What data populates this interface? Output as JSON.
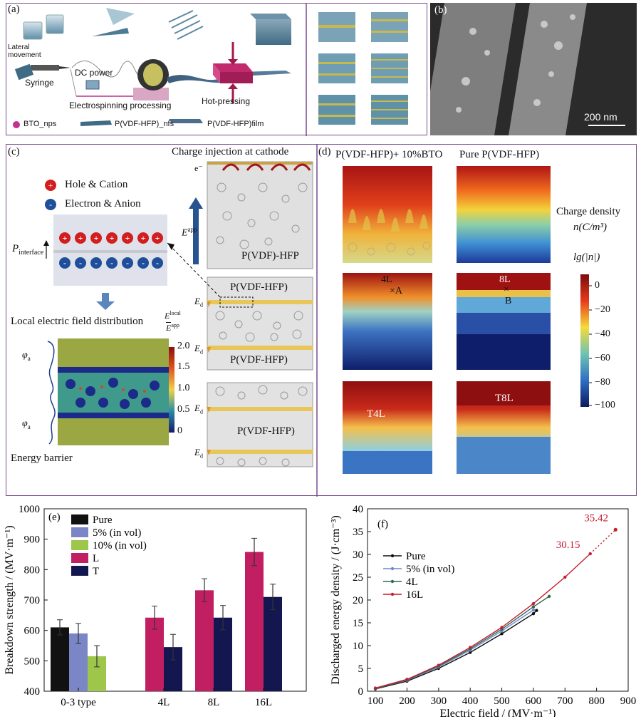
{
  "panel_a": {
    "label": "(a)",
    "lateral": "Lateral\nmovement",
    "syringe": "Syringe",
    "dc_power": "DC power",
    "electrospinning": "Electrospinning processing",
    "hot_pressing": "Hot-pressing",
    "legend": [
      "BTO_nps",
      "P(VDF-HFP)_nfs",
      "P(VDF-HFP)film"
    ]
  },
  "panel_b": {
    "label": "(b)",
    "scale": "200 nm"
  },
  "panel_c": {
    "label": "(c)",
    "charge_injection": "Charge injection at cathode",
    "hole": "Hole & Cation",
    "electron": "Electron & Anion",
    "p_interface": "P",
    "p_interface_sub": "interface",
    "local_field": "Local electric field distribution",
    "ratio_num": "E",
    "ratio_num_sup": "local",
    "ratio_den": "E",
    "ratio_den_sup": "app",
    "colorbar_ticks": [
      "2.0",
      "1.5",
      "1.0",
      "0.5",
      "0"
    ],
    "phi": "φ",
    "phi_sub": "a",
    "energy_barrier": "Energy barrier",
    "e_minus": "e⁻",
    "e_app": "E",
    "e_app_sup": "app",
    "ed": "E",
    "ed_sub": "d",
    "layer_label": "P(VDF)-HFP",
    "layer_label2": "P(VDF-HFP)"
  },
  "panel_d": {
    "label": "(d)",
    "title_left": "P(VDF-HFP)+ 10%BTO",
    "title_right": "Pure P(VDF-HFP)",
    "charge_density": "Charge density",
    "units": "n(C/m³)",
    "lg": "lg(|n|)",
    "colorbar_ticks": [
      "0",
      "−20",
      "−40",
      "−60",
      "−80",
      "−100"
    ],
    "tag_4L": "4L",
    "tag_A": "×A",
    "tag_8L": "8L",
    "tag_B": "B",
    "tag_T4L": "T4L",
    "tag_T8L": "T8L"
  },
  "chart_data": [
    {
      "type": "bar",
      "panel": "(e)",
      "ylabel": "Breakdown strength / (MV·m⁻¹)",
      "ylim": [
        400,
        1000
      ],
      "yticks": [
        400,
        500,
        600,
        700,
        800,
        900,
        1000
      ],
      "groups": [
        "0-3 type",
        "4L",
        "8L",
        "16L"
      ],
      "legend": [
        {
          "name": "Pure",
          "color": "#111111"
        },
        {
          "name": "5% (in vol)",
          "color": "#7b86c6"
        },
        {
          "name": "10% (in vol)",
          "color": "#9dc64a"
        },
        {
          "name": "L",
          "color": "#c21f63"
        },
        {
          "name": "T",
          "color": "#14174f"
        }
      ],
      "bars": [
        {
          "group": 0,
          "series": "Pure",
          "value": 610,
          "err": 25
        },
        {
          "group": 0,
          "series": "5% (in vol)",
          "value": 590,
          "err": 33
        },
        {
          "group": 0,
          "series": "10% (in vol)",
          "value": 515,
          "err": 35
        },
        {
          "group": 1,
          "series": "L",
          "value": 642,
          "err": 38
        },
        {
          "group": 1,
          "series": "T",
          "value": 545,
          "err": 42
        },
        {
          "group": 2,
          "series": "L",
          "value": 732,
          "err": 38
        },
        {
          "group": 2,
          "series": "T",
          "value": 642,
          "err": 40
        },
        {
          "group": 3,
          "series": "L",
          "value": 858,
          "err": 45
        },
        {
          "group": 3,
          "series": "T",
          "value": 710,
          "err": 42
        }
      ]
    },
    {
      "type": "line",
      "panel": "(f)",
      "xlabel": "Electric field / (MV·m⁻¹)",
      "ylabel": "Discharged energy density / (J·cm⁻³)",
      "xlim": [
        75,
        900
      ],
      "ylim": [
        0,
        40
      ],
      "xticks": [
        100,
        200,
        300,
        400,
        500,
        600,
        700,
        800,
        900
      ],
      "yticks": [
        0,
        5,
        10,
        15,
        20,
        25,
        30,
        35,
        40
      ],
      "series": [
        {
          "name": "Pure",
          "color": "#111111",
          "x": [
            100,
            200,
            300,
            400,
            500,
            600,
            610
          ],
          "y": [
            0.5,
            2.2,
            5.0,
            8.5,
            12.6,
            17.0,
            17.7
          ]
        },
        {
          "name": "5% (in vol)",
          "color": "#6f88c8",
          "x": [
            100,
            200,
            300,
            400,
            500,
            600
          ],
          "y": [
            0.6,
            2.4,
            5.3,
            9.0,
            13.2,
            17.8
          ]
        },
        {
          "name": "4L",
          "color": "#2e6b55",
          "x": [
            100,
            200,
            300,
            400,
            500,
            600,
            650
          ],
          "y": [
            0.6,
            2.5,
            5.5,
            9.3,
            13.6,
            18.5,
            20.8
          ]
        },
        {
          "name": "16L",
          "color": "#c41e2f",
          "x": [
            100,
            200,
            300,
            400,
            500,
            600,
            700,
            780
          ],
          "y": [
            0.7,
            2.6,
            5.7,
            9.6,
            14.0,
            19.2,
            25.0,
            30.15
          ]
        }
      ],
      "extrapolated": {
        "x": [
          780,
          860
        ],
        "y": [
          30.15,
          35.42
        ]
      },
      "annotations": [
        "30.15",
        "35.42"
      ]
    }
  ]
}
